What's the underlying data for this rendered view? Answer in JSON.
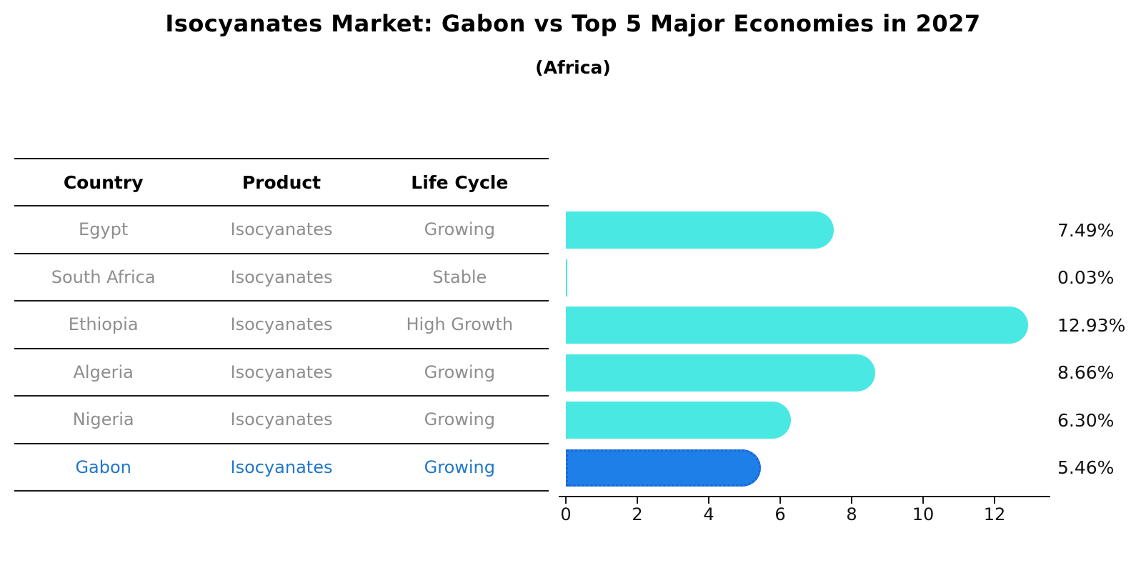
{
  "title": "Isocyanates Market: Gabon vs Top 5 Major Economies in 2027",
  "subtitle": "(Africa)",
  "table": {
    "headers": [
      "Country",
      "Product",
      "Life Cycle"
    ],
    "rows": [
      {
        "country": "Egypt",
        "product": "Isocyanates",
        "life_cycle": "Growing",
        "highlight": false
      },
      {
        "country": "South Africa",
        "product": "Isocyanates",
        "life_cycle": "Stable",
        "highlight": false
      },
      {
        "country": "Ethiopia",
        "product": "Isocyanates",
        "life_cycle": "High Growth",
        "highlight": false
      },
      {
        "country": "Algeria",
        "product": "Isocyanates",
        "life_cycle": "Growing",
        "highlight": false
      },
      {
        "country": "Nigeria",
        "product": "Isocyanates",
        "life_cycle": "Growing",
        "highlight": true
      }
    ]
  },
  "chart_data": {
    "type": "bar",
    "orientation": "horizontal",
    "title": "Isocyanates Market: Gabon vs Top 5 Major Economies in 2027",
    "subtitle": "(Africa)",
    "categories": [
      "Egypt",
      "South Africa",
      "Ethiopia",
      "Algeria",
      "Nigeria",
      "Gabon"
    ],
    "values": [
      7.49,
      0.03,
      12.93,
      8.66,
      6.3,
      5.46
    ],
    "value_labels": [
      "7.49%",
      "0.03%",
      "12.93%",
      "8.66%",
      "6.30%",
      "5.46%"
    ],
    "x_ticks": [
      0,
      2,
      4,
      6,
      8,
      10,
      12
    ],
    "xlim": [
      0,
      13.56
    ],
    "grid": false,
    "legend": "none",
    "highlight_index": 5,
    "bar_color": "#4ae8e3",
    "highlight_bar_color": "#1f7fe8",
    "highlight_border_color": "#1d64d2",
    "highlight_text_color": "#2077c8"
  },
  "gabon_row": {
    "country": "Gabon",
    "product": "Isocyanates",
    "life_cycle": "Growing"
  }
}
